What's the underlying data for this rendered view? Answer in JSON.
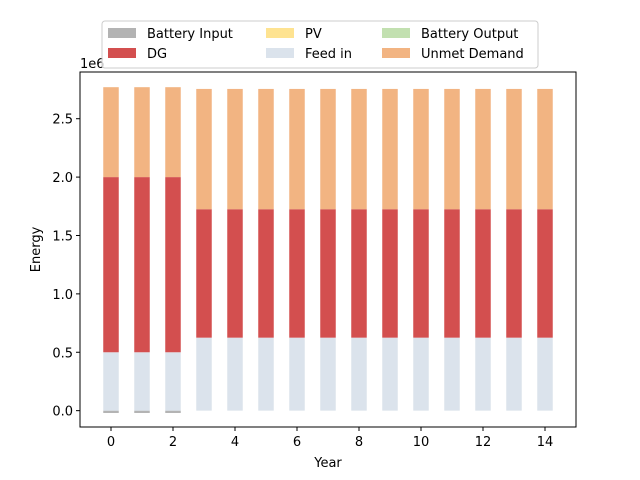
{
  "chart_data": {
    "type": "bar",
    "stacked": true,
    "xlabel": "Year",
    "ylabel": "Energy",
    "y_offset_label": "1e6",
    "xlim": [
      -1,
      15
    ],
    "ylim": [
      -140000,
      2900000
    ],
    "x_ticks": [
      0,
      2,
      4,
      6,
      8,
      10,
      12,
      14
    ],
    "x_tick_labels": [
      "0",
      "2",
      "4",
      "6",
      "8",
      "10",
      "12",
      "14"
    ],
    "y_ticks": [
      0,
      500000,
      1000000,
      1500000,
      2000000,
      2500000
    ],
    "y_tick_labels": [
      "0.0",
      "0.5",
      "1.0",
      "1.5",
      "2.0",
      "2.5"
    ],
    "legend_position": "top-center",
    "legend_columns": 3,
    "x": [
      0,
      1,
      2,
      3,
      4,
      5,
      6,
      7,
      8,
      9,
      10,
      11,
      12,
      13,
      14
    ],
    "series": [
      {
        "name": "Battery Input",
        "color": "#b3b3b3",
        "values": [
          -20000,
          -20000,
          -20000,
          0,
          0,
          0,
          0,
          0,
          0,
          0,
          0,
          0,
          0,
          0,
          0
        ]
      },
      {
        "name": "PV",
        "color": "#fee391",
        "values": [
          0,
          0,
          0,
          0,
          0,
          0,
          0,
          0,
          0,
          0,
          0,
          0,
          0,
          0,
          0
        ]
      },
      {
        "name": "Battery Output",
        "color": "#c2e0b0",
        "values": [
          0,
          0,
          0,
          0,
          0,
          0,
          0,
          0,
          0,
          0,
          0,
          0,
          0,
          0,
          0
        ]
      },
      {
        "name": "DG",
        "color": "#d34f4f",
        "values": [
          1500000,
          1500000,
          1500000,
          1100000,
          1100000,
          1100000,
          1100000,
          1100000,
          1100000,
          1100000,
          1100000,
          1100000,
          1100000,
          1100000,
          1100000
        ]
      },
      {
        "name": "Feed in",
        "color": "#dbe3ec",
        "values": [
          500000,
          500000,
          500000,
          625000,
          625000,
          625000,
          625000,
          625000,
          625000,
          625000,
          625000,
          625000,
          625000,
          625000,
          625000
        ]
      },
      {
        "name": "Unmet Demand",
        "color": "#f2b482",
        "values": [
          770000,
          770000,
          770000,
          1030000,
          1030000,
          1030000,
          1030000,
          1030000,
          1030000,
          1030000,
          1030000,
          1030000,
          1030000,
          1030000,
          1030000
        ]
      }
    ],
    "stack_order": [
      "Feed in",
      "DG",
      "Unmet Demand",
      "PV",
      "Battery Output"
    ],
    "legend_order": [
      "Battery Input",
      "PV",
      "Battery Output",
      "DG",
      "Feed in",
      "Unmet Demand"
    ]
  }
}
